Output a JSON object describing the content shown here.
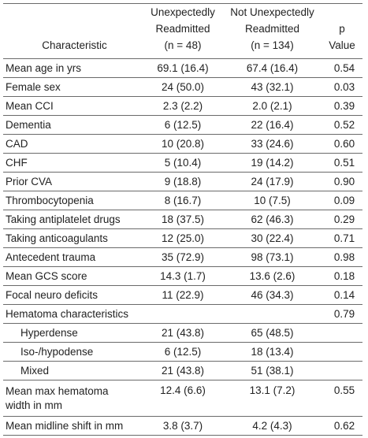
{
  "header": {
    "characteristic": "Characteristic",
    "col1": [
      "Unexpectedly",
      "Readmitted",
      "(n = 48)"
    ],
    "col2": [
      "Not Unexpectedly",
      "Readmitted",
      "(n = 134)"
    ],
    "col3": [
      "p",
      "Value"
    ]
  },
  "rows": [
    {
      "label": "Mean age in yrs",
      "v1": "69.1 (16.4)",
      "v2": "67.4 (16.4)",
      "p": "0.54"
    },
    {
      "label": "Female sex",
      "v1": "24 (50.0)",
      "v2": "43 (32.1)",
      "p": "0.03"
    },
    {
      "label": "Mean CCI",
      "v1": "2.3 (2.2)",
      "v2": "2.0 (2.1)",
      "p": "0.39"
    },
    {
      "label": "Dementia",
      "v1": "6 (12.5)",
      "v2": "22 (16.4)",
      "p": "0.52"
    },
    {
      "label": "CAD",
      "v1": "10 (20.8)",
      "v2": "33 (24.6)",
      "p": "0.60"
    },
    {
      "label": "CHF",
      "v1": "5 (10.4)",
      "v2": "19 (14.2)",
      "p": "0.51"
    },
    {
      "label": "Prior CVA",
      "v1": "9 (18.8)",
      "v2": "24 (17.9)",
      "p": "0.90"
    },
    {
      "label": "Thrombocytopenia",
      "v1": "8 (16.7)",
      "v2": "10 (7.5)",
      "p": "0.09"
    },
    {
      "label": "Taking antiplatelet drugs",
      "v1": "18 (37.5)",
      "v2": "62 (46.3)",
      "p": "0.29"
    },
    {
      "label": "Taking anticoagulants",
      "v1": "12 (25.0)",
      "v2": "30 (22.4)",
      "p": "0.71"
    },
    {
      "label": "Antecedent trauma",
      "v1": "35 (72.9)",
      "v2": "98 (73.1)",
      "p": "0.98"
    },
    {
      "label": "Mean GCS score",
      "v1": "14.3 (1.7)",
      "v2": "13.6 (2.6)",
      "p": "0.18"
    },
    {
      "label": "Focal neuro deficits",
      "v1": "11 (22.9)",
      "v2": "46 (34.3)",
      "p": "0.14"
    },
    {
      "label": "Hematoma characteristics",
      "v1": "",
      "v2": "",
      "p": "0.79"
    },
    {
      "label": "Hyperdense",
      "v1": "21 (43.8)",
      "v2": "65 (48.5)",
      "p": "",
      "sub": true
    },
    {
      "label": "Iso-/hypodense",
      "v1": "6 (12.5)",
      "v2": "18 (13.4)",
      "p": "",
      "sub": true
    },
    {
      "label": "Mixed",
      "v1": "21 (43.8)",
      "v2": "51 (38.1)",
      "p": "",
      "sub": true
    },
    {
      "label": [
        "Mean max hematoma",
        "width in mm"
      ],
      "v1": "12.4 (6.6)",
      "v2": "13.1 (7.2)",
      "p": "0.55",
      "tall": true
    },
    {
      "label": "Mean midline shift in mm",
      "v1": "3.8 (3.7)",
      "v2": "4.2 (4.3)",
      "p": "0.62"
    }
  ]
}
